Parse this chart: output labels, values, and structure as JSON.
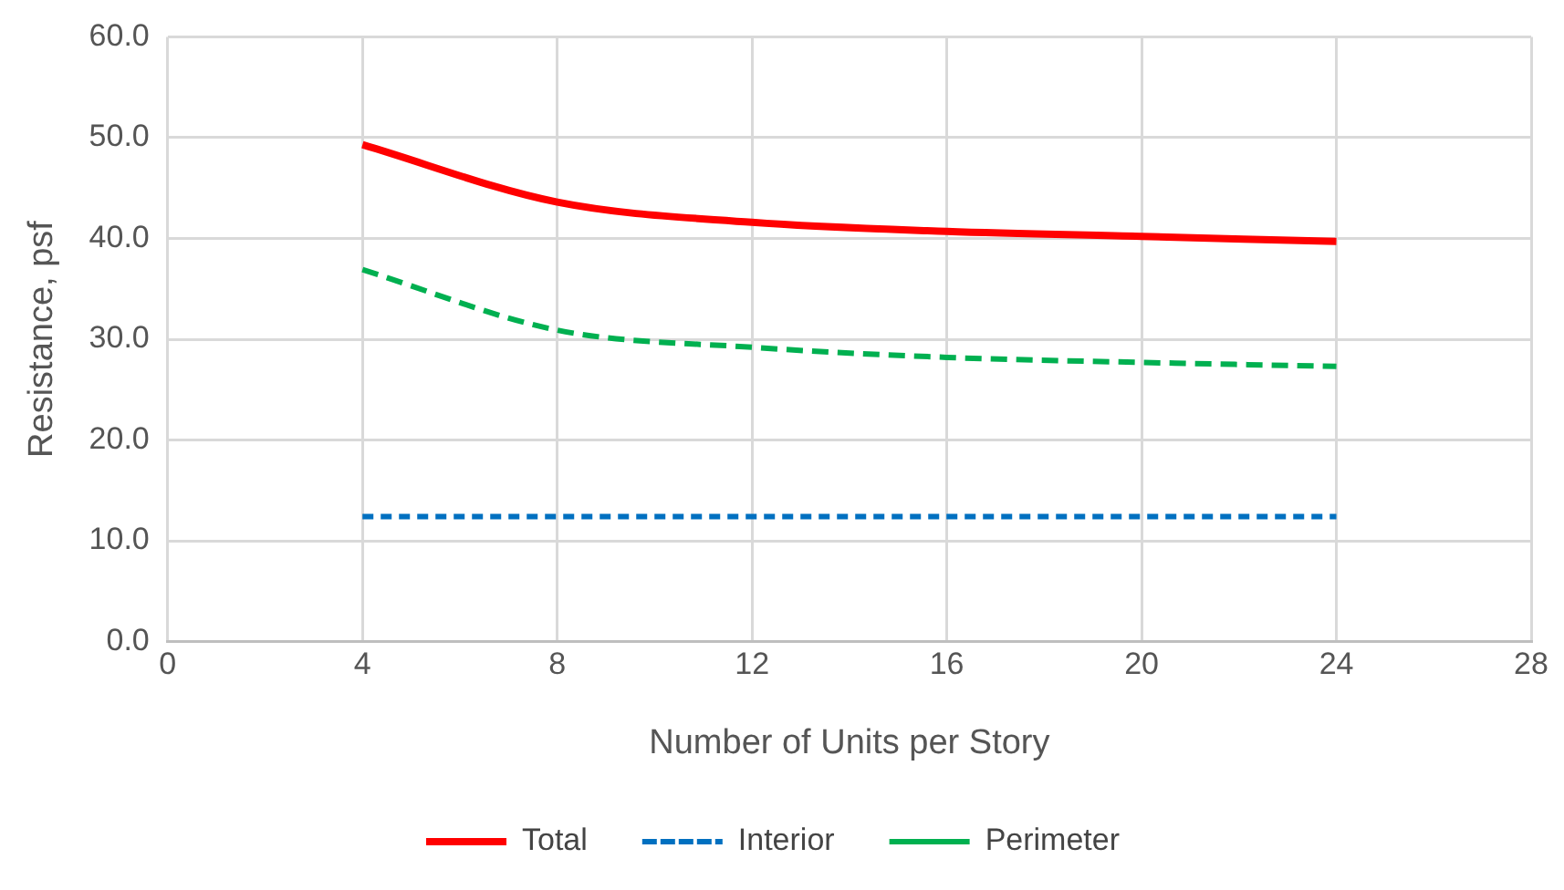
{
  "chart_data": {
    "type": "line",
    "xlabel": "Number of Units per Story",
    "ylabel": "Resistance, psf",
    "x": [
      4,
      8,
      12,
      16,
      20,
      24
    ],
    "series": [
      {
        "name": "Total",
        "color": "#ff0000",
        "line_style": "solid",
        "values": [
          49.3,
          43.6,
          41.6,
          40.7,
          40.2,
          39.7
        ]
      },
      {
        "name": "Interior",
        "color": "#0070c0",
        "line_style": "dotted",
        "values": [
          12.4,
          12.4,
          12.4,
          12.4,
          12.4,
          12.4
        ]
      },
      {
        "name": "Perimeter",
        "color": "#00b050",
        "line_style": "dashed",
        "values": [
          36.9,
          30.9,
          29.2,
          28.2,
          27.7,
          27.3
        ]
      }
    ],
    "xlim": [
      0,
      28
    ],
    "xticks": [
      0,
      4,
      8,
      12,
      16,
      20,
      24,
      28
    ],
    "ylim": [
      0,
      60
    ],
    "yticks": [
      {
        "value": 0,
        "label": "0.0"
      },
      {
        "value": 10,
        "label": "10.0"
      },
      {
        "value": 20,
        "label": "20.0"
      },
      {
        "value": 30,
        "label": "30.0"
      },
      {
        "value": 40,
        "label": "40.0"
      },
      {
        "value": 50,
        "label": "50.0"
      },
      {
        "value": 60,
        "label": "60.0"
      }
    ],
    "grid": true,
    "legend": "bottom",
    "marker": "none"
  }
}
